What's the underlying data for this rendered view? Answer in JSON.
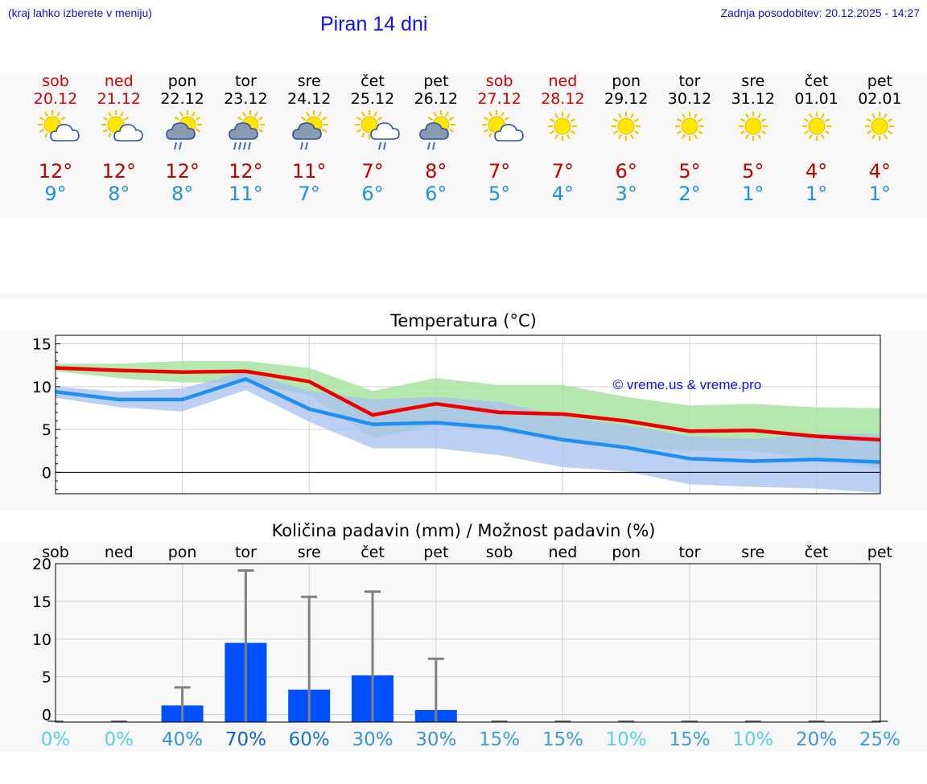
{
  "header": {
    "hint": "(kraj lahko izberete v meniju)",
    "title": "Piran 14 dni",
    "updated": "Zadnja posodobitev: 20.12.2025 - 14:27"
  },
  "colors": {
    "max": "#c00000",
    "min": "#1e90e0",
    "weekend": "#d00000",
    "red_line": "#ee0000",
    "blue_line": "#2090f0",
    "green_band": "#a8e4a0",
    "blue_band": "#a8bff0",
    "bar": "#0050ff",
    "whisker": "#808080"
  },
  "days": [
    {
      "wd": "sob",
      "date": "20.12",
      "icon": "sun-cloud-icon",
      "max": "12°",
      "min": "9°",
      "weekend": true
    },
    {
      "wd": "ned",
      "date": "21.12",
      "icon": "sun-cloud-icon",
      "max": "12°",
      "min": "8°",
      "weekend": true
    },
    {
      "wd": "pon",
      "date": "22.12",
      "icon": "sun-rain-icon",
      "max": "12°",
      "min": "8°",
      "weekend": false
    },
    {
      "wd": "tor",
      "date": "23.12",
      "icon": "sun-heavy-rain-icon",
      "max": "12°",
      "min": "11°",
      "weekend": false
    },
    {
      "wd": "sre",
      "date": "24.12",
      "icon": "sun-rain-icon",
      "max": "11°",
      "min": "7°",
      "weekend": false
    },
    {
      "wd": "čet",
      "date": "25.12",
      "icon": "sun-cloud-rain-icon",
      "max": "7°",
      "min": "6°",
      "weekend": false
    },
    {
      "wd": "pet",
      "date": "26.12",
      "icon": "sun-rain-icon",
      "max": "8°",
      "min": "6°",
      "weekend": false
    },
    {
      "wd": "sob",
      "date": "27.12",
      "icon": "sun-cloud-icon",
      "max": "7°",
      "min": "5°",
      "weekend": true
    },
    {
      "wd": "ned",
      "date": "28.12",
      "icon": "sun-icon",
      "max": "7°",
      "min": "4°",
      "weekend": true
    },
    {
      "wd": "pon",
      "date": "29.12",
      "icon": "sun-icon",
      "max": "6°",
      "min": "3°",
      "weekend": false
    },
    {
      "wd": "tor",
      "date": "30.12",
      "icon": "sun-icon",
      "max": "5°",
      "min": "2°",
      "weekend": false
    },
    {
      "wd": "sre",
      "date": "31.12",
      "icon": "sun-icon",
      "max": "5°",
      "min": "1°",
      "weekend": false
    },
    {
      "wd": "čet",
      "date": "01.01",
      "icon": "sun-icon",
      "max": "4°",
      "min": "1°",
      "weekend": false
    },
    {
      "wd": "pet",
      "date": "02.01",
      "icon": "sun-icon",
      "max": "4°",
      "min": "1°",
      "weekend": false
    }
  ],
  "chart_data": [
    {
      "type": "line",
      "title": "Temperatura (°C)",
      "watermark": "© vreme.us & vreme.pro",
      "xlabel": "",
      "ylabel": "",
      "ylim": [
        -2.5,
        16
      ],
      "yticks": [
        0,
        5,
        10,
        15
      ],
      "x": [
        0,
        1,
        2,
        3,
        4,
        5,
        6,
        7,
        8,
        9,
        10,
        11,
        12,
        13
      ],
      "series": [
        {
          "name": "max",
          "values": [
            12.2,
            11.9,
            11.7,
            11.8,
            10.6,
            6.7,
            8.0,
            7.0,
            6.8,
            6.0,
            4.8,
            4.9,
            4.2,
            3.8
          ]
        },
        {
          "name": "min",
          "values": [
            9.4,
            8.5,
            8.5,
            10.9,
            7.4,
            5.6,
            5.8,
            5.2,
            3.8,
            2.9,
            1.6,
            1.3,
            1.5,
            1.2
          ]
        }
      ],
      "bands": [
        {
          "name": "max-range",
          "upper": [
            12.7,
            12.7,
            13.0,
            13.0,
            12.2,
            9.5,
            11.0,
            10.2,
            10.2,
            8.8,
            7.8,
            8.0,
            7.6,
            7.5
          ],
          "lower": [
            11.8,
            11.0,
            10.5,
            10.5,
            9.0,
            4.0,
            5.5,
            4.8,
            3.5,
            3.0,
            2.5,
            2.5,
            1.5,
            0.5
          ]
        },
        {
          "name": "min-range",
          "upper": [
            10.0,
            9.4,
            9.8,
            11.8,
            9.5,
            8.5,
            8.8,
            8.2,
            6.5,
            5.5,
            4.2,
            3.9,
            4.5,
            4.5
          ],
          "lower": [
            8.7,
            7.6,
            7.1,
            9.6,
            5.9,
            2.8,
            2.8,
            2.0,
            0.6,
            0.1,
            -1.4,
            -1.7,
            -1.9,
            -2.4
          ]
        }
      ]
    },
    {
      "type": "bar",
      "title": "Količina padavin (mm) / Možnost padavin (%)",
      "xlabel": "",
      "ylabel": "",
      "ylim": [
        -1,
        20
      ],
      "yticks": [
        0,
        5,
        10,
        15,
        20
      ],
      "categories": [
        "sob",
        "ned",
        "pon",
        "tor",
        "sre",
        "čet",
        "pet",
        "sob",
        "ned",
        "pon",
        "tor",
        "sre",
        "čet",
        "pet"
      ],
      "values": [
        0,
        0,
        1.2,
        9.5,
        3.3,
        5.2,
        0.6,
        0,
        0,
        0,
        0,
        0,
        0,
        0
      ],
      "whisker_max": [
        0,
        0,
        3.6,
        19.1,
        15.6,
        16.3,
        7.4,
        0,
        0,
        0,
        0,
        0,
        0,
        0
      ],
      "probabilities": [
        "0%",
        "0%",
        "40%",
        "70%",
        "60%",
        "30%",
        "30%",
        "15%",
        "15%",
        "10%",
        "15%",
        "10%",
        "20%",
        "25%"
      ],
      "probability_colors": [
        "#5ad0e8",
        "#5ad0e8",
        "#3a92d8",
        "#1060c0",
        "#1a72c8",
        "#3a92d8",
        "#3a92d8",
        "#3aa0d8",
        "#3aa0d8",
        "#5ad0e8",
        "#3aa0d8",
        "#5ad0e8",
        "#3a92d8",
        "#3aa0d8"
      ]
    }
  ]
}
